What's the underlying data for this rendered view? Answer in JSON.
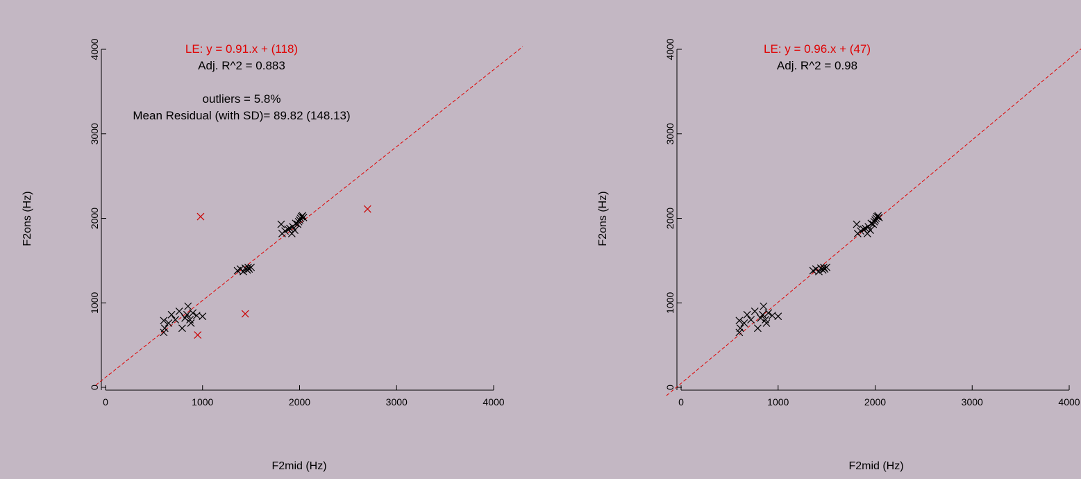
{
  "colors": {
    "background": "#c3b7c3",
    "axis": "#000000",
    "regression": "#e00000",
    "inlier_marker": "#000000",
    "outlier_marker": "#cc0000"
  },
  "chart_data": [
    {
      "type": "scatter",
      "xlabel": "F2mid (Hz)",
      "ylabel": "F2ons (Hz)",
      "xlim": [
        0,
        4000
      ],
      "ylim": [
        0,
        4000
      ],
      "xticks": [
        "0",
        "1000",
        "2000",
        "3000",
        "4000"
      ],
      "yticks": [
        "0",
        "1000",
        "2000",
        "3000",
        "4000"
      ],
      "annotations": {
        "equation": "LE: y = 0.91.x + (118)",
        "r2": "Adj. R^2 = 0.883",
        "outliers": "outliers = 5.8%",
        "residual": "Mean Residual (with SD)= 89.82 (148.13)"
      },
      "regression": {
        "slope": 0.91,
        "intercept": 118
      },
      "points": [
        [
          600,
          650
        ],
        [
          610,
          700
        ],
        [
          600,
          790
        ],
        [
          650,
          760
        ],
        [
          680,
          860
        ],
        [
          720,
          800
        ],
        [
          760,
          900
        ],
        [
          790,
          700
        ],
        [
          820,
          820
        ],
        [
          840,
          860
        ],
        [
          850,
          960
        ],
        [
          870,
          800
        ],
        [
          880,
          760
        ],
        [
          900,
          880
        ],
        [
          940,
          850
        ],
        [
          1000,
          840
        ],
        [
          1360,
          1380
        ],
        [
          1390,
          1400
        ],
        [
          1420,
          1370
        ],
        [
          1440,
          1410
        ],
        [
          1460,
          1390
        ],
        [
          1470,
          1420
        ],
        [
          1480,
          1400
        ],
        [
          1500,
          1420
        ],
        [
          1810,
          1930
        ],
        [
          1820,
          1820
        ],
        [
          1850,
          1850
        ],
        [
          1880,
          1870
        ],
        [
          1900,
          1880
        ],
        [
          1920,
          1820
        ],
        [
          1930,
          1900
        ],
        [
          1950,
          1860
        ],
        [
          1960,
          1940
        ],
        [
          1980,
          1930
        ],
        [
          1990,
          1960
        ],
        [
          2000,
          1980
        ],
        [
          2010,
          2000
        ],
        [
          2020,
          2020
        ],
        [
          2030,
          2030
        ],
        [
          2040,
          2010
        ]
      ],
      "outliers": [
        [
          980,
          2020
        ],
        [
          2700,
          2110
        ],
        [
          1440,
          870
        ],
        [
          950,
          620
        ]
      ]
    },
    {
      "type": "scatter",
      "xlabel": "F2mid (Hz)",
      "ylabel": "F2ons (Hz)",
      "xlim": [
        0,
        4000
      ],
      "ylim": [
        0,
        4000
      ],
      "xticks": [
        "0",
        "1000",
        "2000",
        "3000",
        "4000"
      ],
      "yticks": [
        "0",
        "1000",
        "2000",
        "3000",
        "4000"
      ],
      "annotations": {
        "equation": "LE: y = 0.96.x + (47)",
        "r2": "Adj. R^2 = 0.98"
      },
      "regression": {
        "slope": 0.96,
        "intercept": 47
      },
      "points": [
        [
          600,
          650
        ],
        [
          610,
          700
        ],
        [
          600,
          790
        ],
        [
          650,
          760
        ],
        [
          680,
          860
        ],
        [
          720,
          800
        ],
        [
          760,
          900
        ],
        [
          790,
          700
        ],
        [
          820,
          820
        ],
        [
          840,
          860
        ],
        [
          850,
          960
        ],
        [
          870,
          800
        ],
        [
          880,
          760
        ],
        [
          900,
          880
        ],
        [
          940,
          850
        ],
        [
          1000,
          840
        ],
        [
          1360,
          1380
        ],
        [
          1390,
          1400
        ],
        [
          1420,
          1370
        ],
        [
          1440,
          1410
        ],
        [
          1460,
          1390
        ],
        [
          1470,
          1420
        ],
        [
          1480,
          1400
        ],
        [
          1500,
          1420
        ],
        [
          1810,
          1930
        ],
        [
          1820,
          1820
        ],
        [
          1850,
          1850
        ],
        [
          1880,
          1870
        ],
        [
          1900,
          1880
        ],
        [
          1920,
          1820
        ],
        [
          1930,
          1900
        ],
        [
          1950,
          1860
        ],
        [
          1960,
          1940
        ],
        [
          1980,
          1930
        ],
        [
          1990,
          1960
        ],
        [
          2000,
          1980
        ],
        [
          2010,
          2000
        ],
        [
          2020,
          2020
        ],
        [
          2030,
          2030
        ],
        [
          2040,
          2010
        ]
      ],
      "outliers": []
    }
  ]
}
